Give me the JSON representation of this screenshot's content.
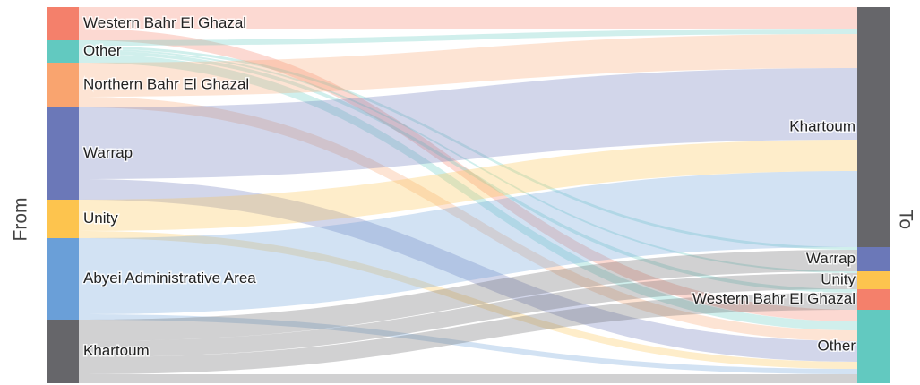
{
  "chart_data": {
    "type": "sankey",
    "source_label": "From",
    "target_label": "To",
    "sources": [
      {
        "name": "Western Bahr El Ghazal",
        "color": "#f4806b"
      },
      {
        "name": "Other",
        "color": "#62c9c0"
      },
      {
        "name": "Northern Bahr El Ghazal",
        "color": "#f9a46f"
      },
      {
        "name": "Warrap",
        "color": "#6b78b8"
      },
      {
        "name": "Unity",
        "color": "#fdc44e"
      },
      {
        "name": "Abyei Administrative Area",
        "color": "#6a9fd8"
      },
      {
        "name": "Khartoum",
        "color": "#66666a"
      }
    ],
    "targets": [
      {
        "name": "Khartoum",
        "color": "#66666a"
      },
      {
        "name": "Warrap",
        "color": "#6b78b8"
      },
      {
        "name": "Unity",
        "color": "#fdc44e"
      },
      {
        "name": "Western Bahr El Ghazal",
        "color": "#f4806b"
      },
      {
        "name": "Other",
        "color": "#62c9c0"
      }
    ],
    "links": [
      {
        "source": 0,
        "target": 0,
        "value": 24
      },
      {
        "source": 0,
        "target": 4,
        "value": 13
      },
      {
        "source": 1,
        "target": 0,
        "value": 6
      },
      {
        "source": 1,
        "target": 1,
        "value": 3
      },
      {
        "source": 1,
        "target": 2,
        "value": 2
      },
      {
        "source": 1,
        "target": 3,
        "value": 4
      },
      {
        "source": 1,
        "target": 4,
        "value": 10
      },
      {
        "source": 2,
        "target": 0,
        "value": 38
      },
      {
        "source": 2,
        "target": 4,
        "value": 12
      },
      {
        "source": 3,
        "target": 0,
        "value": 80
      },
      {
        "source": 3,
        "target": 4,
        "value": 23
      },
      {
        "source": 4,
        "target": 0,
        "value": 35
      },
      {
        "source": 4,
        "target": 4,
        "value": 8
      },
      {
        "source": 5,
        "target": 0,
        "value": 85
      },
      {
        "source": 5,
        "target": 4,
        "value": 6
      },
      {
        "source": 6,
        "target": 1,
        "value": 24
      },
      {
        "source": 6,
        "target": 2,
        "value": 18
      },
      {
        "source": 6,
        "target": 3,
        "value": 19
      },
      {
        "source": 6,
        "target": 4,
        "value": 10
      }
    ]
  }
}
